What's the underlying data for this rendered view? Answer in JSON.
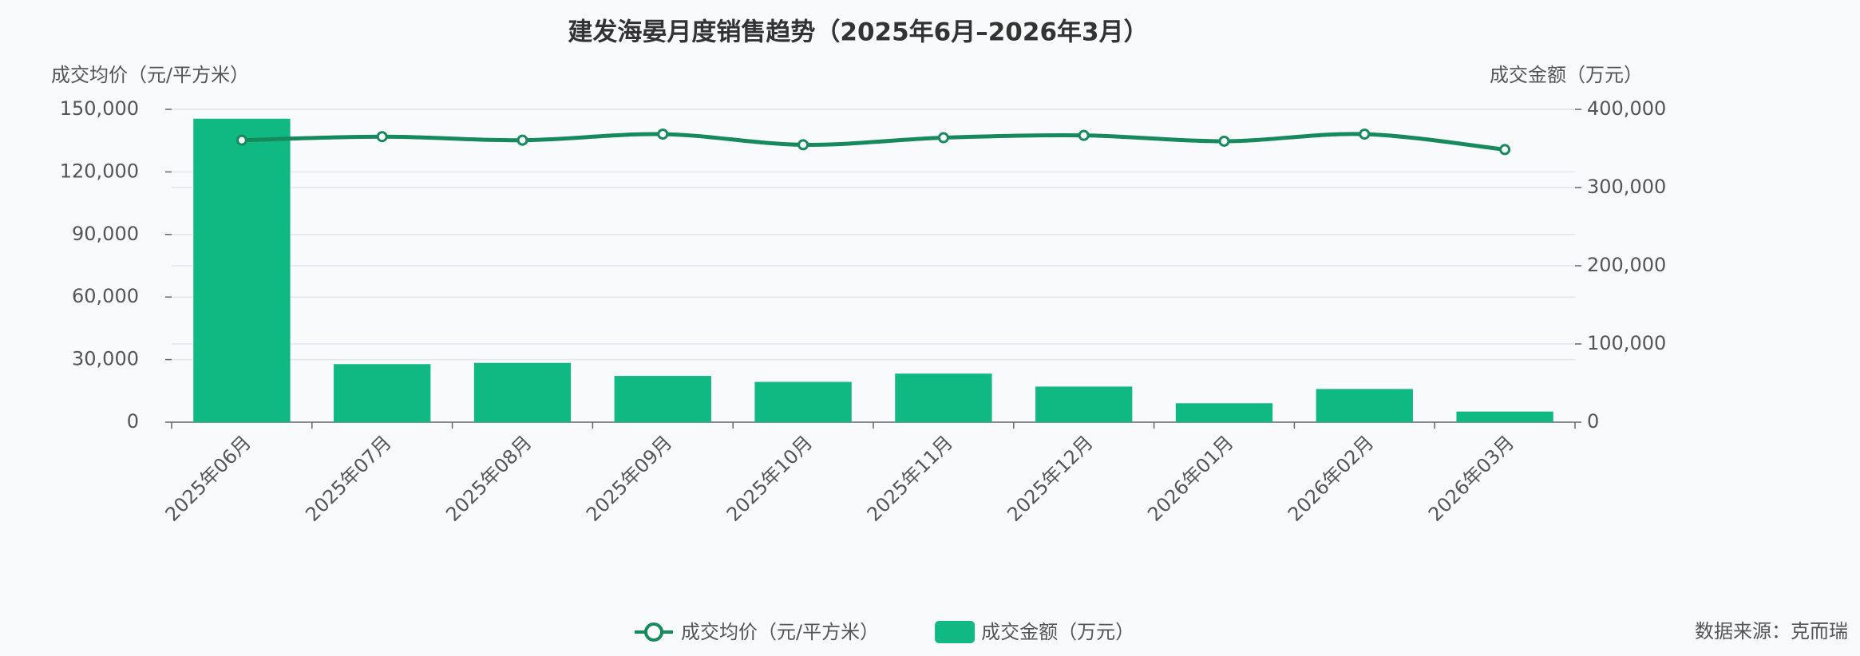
{
  "chart_data": {
    "type": "bar-line",
    "title": "建发海晏月度销售趋势（2025年6月–2026年3月）",
    "y_label": "成交均价（元/平方米）",
    "y2_label": "成交金额（万元）",
    "source": "数据来源：克而瑞",
    "categories": [
      "2025年06月",
      "2025年07月",
      "2025年08月",
      "2025年09月",
      "2025年10月",
      "2025年11月",
      "2025年12月",
      "2026年01月",
      "2026年02月",
      "2026年03月"
    ],
    "series": [
      {
        "name": "成交均价（元/平方米）",
        "type": "line",
        "color": "#168a5c",
        "axis": "y",
        "values": [
          135200,
          136900,
          135200,
          138100,
          133000,
          136400,
          137500,
          134700,
          138100,
          130700
        ]
      },
      {
        "name": "成交金额（万元）",
        "type": "bar",
        "color": "#10b981",
        "axis": "y2",
        "values": [
          388000,
          74200,
          75800,
          59100,
          51500,
          62100,
          45500,
          24200,
          42400,
          13600
        ]
      }
    ],
    "ylim": [
      0,
      150000
    ],
    "yticks": [
      0,
      {
        "value": 30000,
        "label": "30,000"
      },
      {
        "value": 60000,
        "label": "60,000"
      },
      {
        "value": 90000,
        "label": "90,000"
      },
      {
        "value": 120000,
        "label": "120,000"
      },
      {
        "value": 150000,
        "label": "150,000"
      }
    ],
    "y2lim": [
      0,
      400000
    ],
    "y2ticks": [
      0,
      {
        "value": 100000,
        "label": "100,000"
      },
      {
        "value": 200000,
        "label": "200,000"
      },
      {
        "value": 300000,
        "label": "300,000"
      },
      {
        "value": 400000,
        "label": "400,000"
      }
    ],
    "grid": true
  }
}
